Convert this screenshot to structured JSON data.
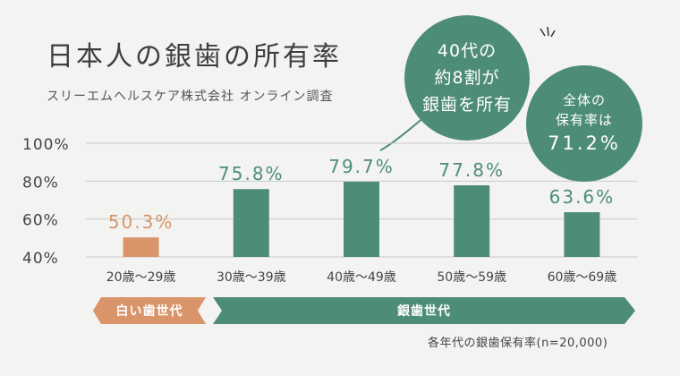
{
  "header": {
    "title": "日本人の銀歯の所有率",
    "subtitle": "スリーエムヘルスケア株式会社 オンライン調査"
  },
  "callouts": {
    "main_lines": [
      "40代の",
      "約8割が",
      "銀歯を所有"
    ],
    "overall_line1": "全体の",
    "overall_line2": "保有率は",
    "overall_value": "71.2%"
  },
  "bands": {
    "white_teeth": "白い歯世代",
    "silver_teeth": "銀歯世代"
  },
  "footnote": "各年代の銀歯保有率(n=20,000)",
  "colors": {
    "accent_green": "#4e8c7a",
    "accent_orange": "#d99469",
    "background": "#f3f3f2",
    "grid": "#c9c9c9"
  },
  "chart_data": {
    "type": "bar",
    "categories": [
      "20歳～29歳",
      "30歳～39歳",
      "40歳～49歳",
      "50歳～59歳",
      "60歳～69歳"
    ],
    "values": [
      50.3,
      75.8,
      79.7,
      77.8,
      63.6
    ],
    "value_labels": [
      "50.3%",
      "75.8%",
      "79.7%",
      "77.8%",
      "63.6%"
    ],
    "bar_colors": [
      "#d99469",
      "#4e8c7a",
      "#4e8c7a",
      "#4e8c7a",
      "#4e8c7a"
    ],
    "yticks": [
      "100%",
      "80%",
      "60%",
      "40%"
    ],
    "ytick_values": [
      100,
      80,
      60,
      40
    ],
    "ylim": [
      40,
      100
    ],
    "grid": true,
    "legend": "none"
  }
}
